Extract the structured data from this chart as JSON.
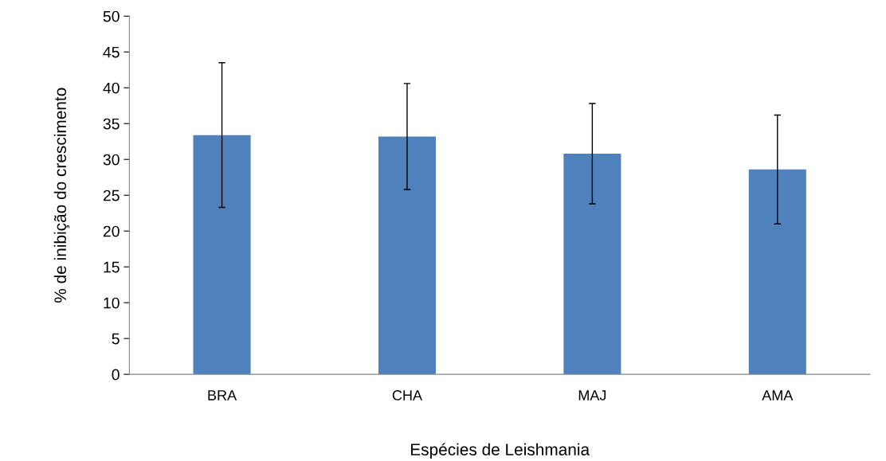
{
  "chart_data": {
    "type": "bar",
    "xlabel": "Espécies de Leishmania",
    "ylabel": "% de inibição do crescimento",
    "categories": [
      "BRA",
      "CHA",
      "MAJ",
      "AMA"
    ],
    "series": [
      {
        "color": "#4f81bd",
        "values": [
          33.4,
          33.2,
          30.8,
          28.6
        ],
        "errors": [
          10.1,
          7.4,
          7.0,
          7.6
        ]
      }
    ],
    "ylim": [
      0,
      50
    ],
    "yticks": [
      0,
      5,
      10,
      15,
      20,
      25,
      30,
      35,
      40,
      45,
      50
    ],
    "grid": false,
    "legend": false
  }
}
